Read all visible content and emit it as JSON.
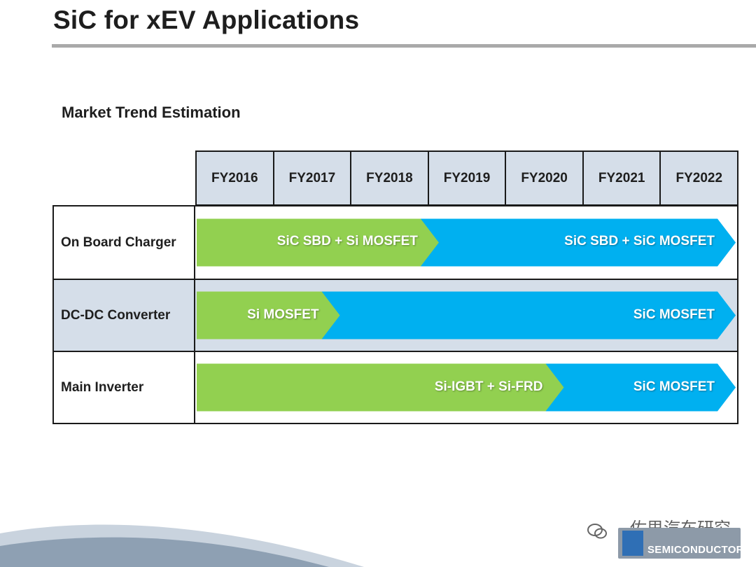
{
  "title": "SiC for xEV Applications",
  "section_heading": "Market Trend Estimation",
  "years": [
    "FY2016",
    "FY2017",
    "FY2018",
    "FY2019",
    "FY2020",
    "FY2021",
    "FY2022"
  ],
  "rows": [
    {
      "label": "On Board Charger",
      "segments": [
        {
          "text": "SiC SBD + Si MOSFET",
          "color": "#92d050",
          "start_year": "FY2016",
          "end_fraction_of_timeline": 0.43
        },
        {
          "text": "SiC SBD + SiC MOSFET",
          "color": "#00b0f0",
          "start_fraction_of_timeline": 0.43,
          "end_year": "FY2022"
        }
      ]
    },
    {
      "label": "DC-DC Converter",
      "segments": [
        {
          "text": "Si MOSFET",
          "color": "#92d050",
          "start_year": "FY2016",
          "end_fraction_of_timeline": 0.24
        },
        {
          "text": "SiC MOSFET",
          "color": "#00b0f0",
          "start_fraction_of_timeline": 0.24,
          "end_year": "FY2022"
        }
      ]
    },
    {
      "label": "Main Inverter",
      "segments": [
        {
          "text": "Si-IGBT + Si-FRD",
          "color": "#92d050",
          "start_year": "FY2016",
          "end_fraction_of_timeline": 0.67
        },
        {
          "text": "SiC MOSFET",
          "color": "#00b0f0",
          "start_fraction_of_timeline": 0.67,
          "end_year": "FY2022"
        }
      ]
    }
  ],
  "footer": {
    "badge_text": "SEMICONDUCTOR",
    "watermark_text": "佐思汽车研究"
  },
  "colors": {
    "header_fill": "#d5dee9",
    "silicon": "#92d050",
    "silicon_carbide": "#00b0f0",
    "rule": "#a9a9a9"
  }
}
